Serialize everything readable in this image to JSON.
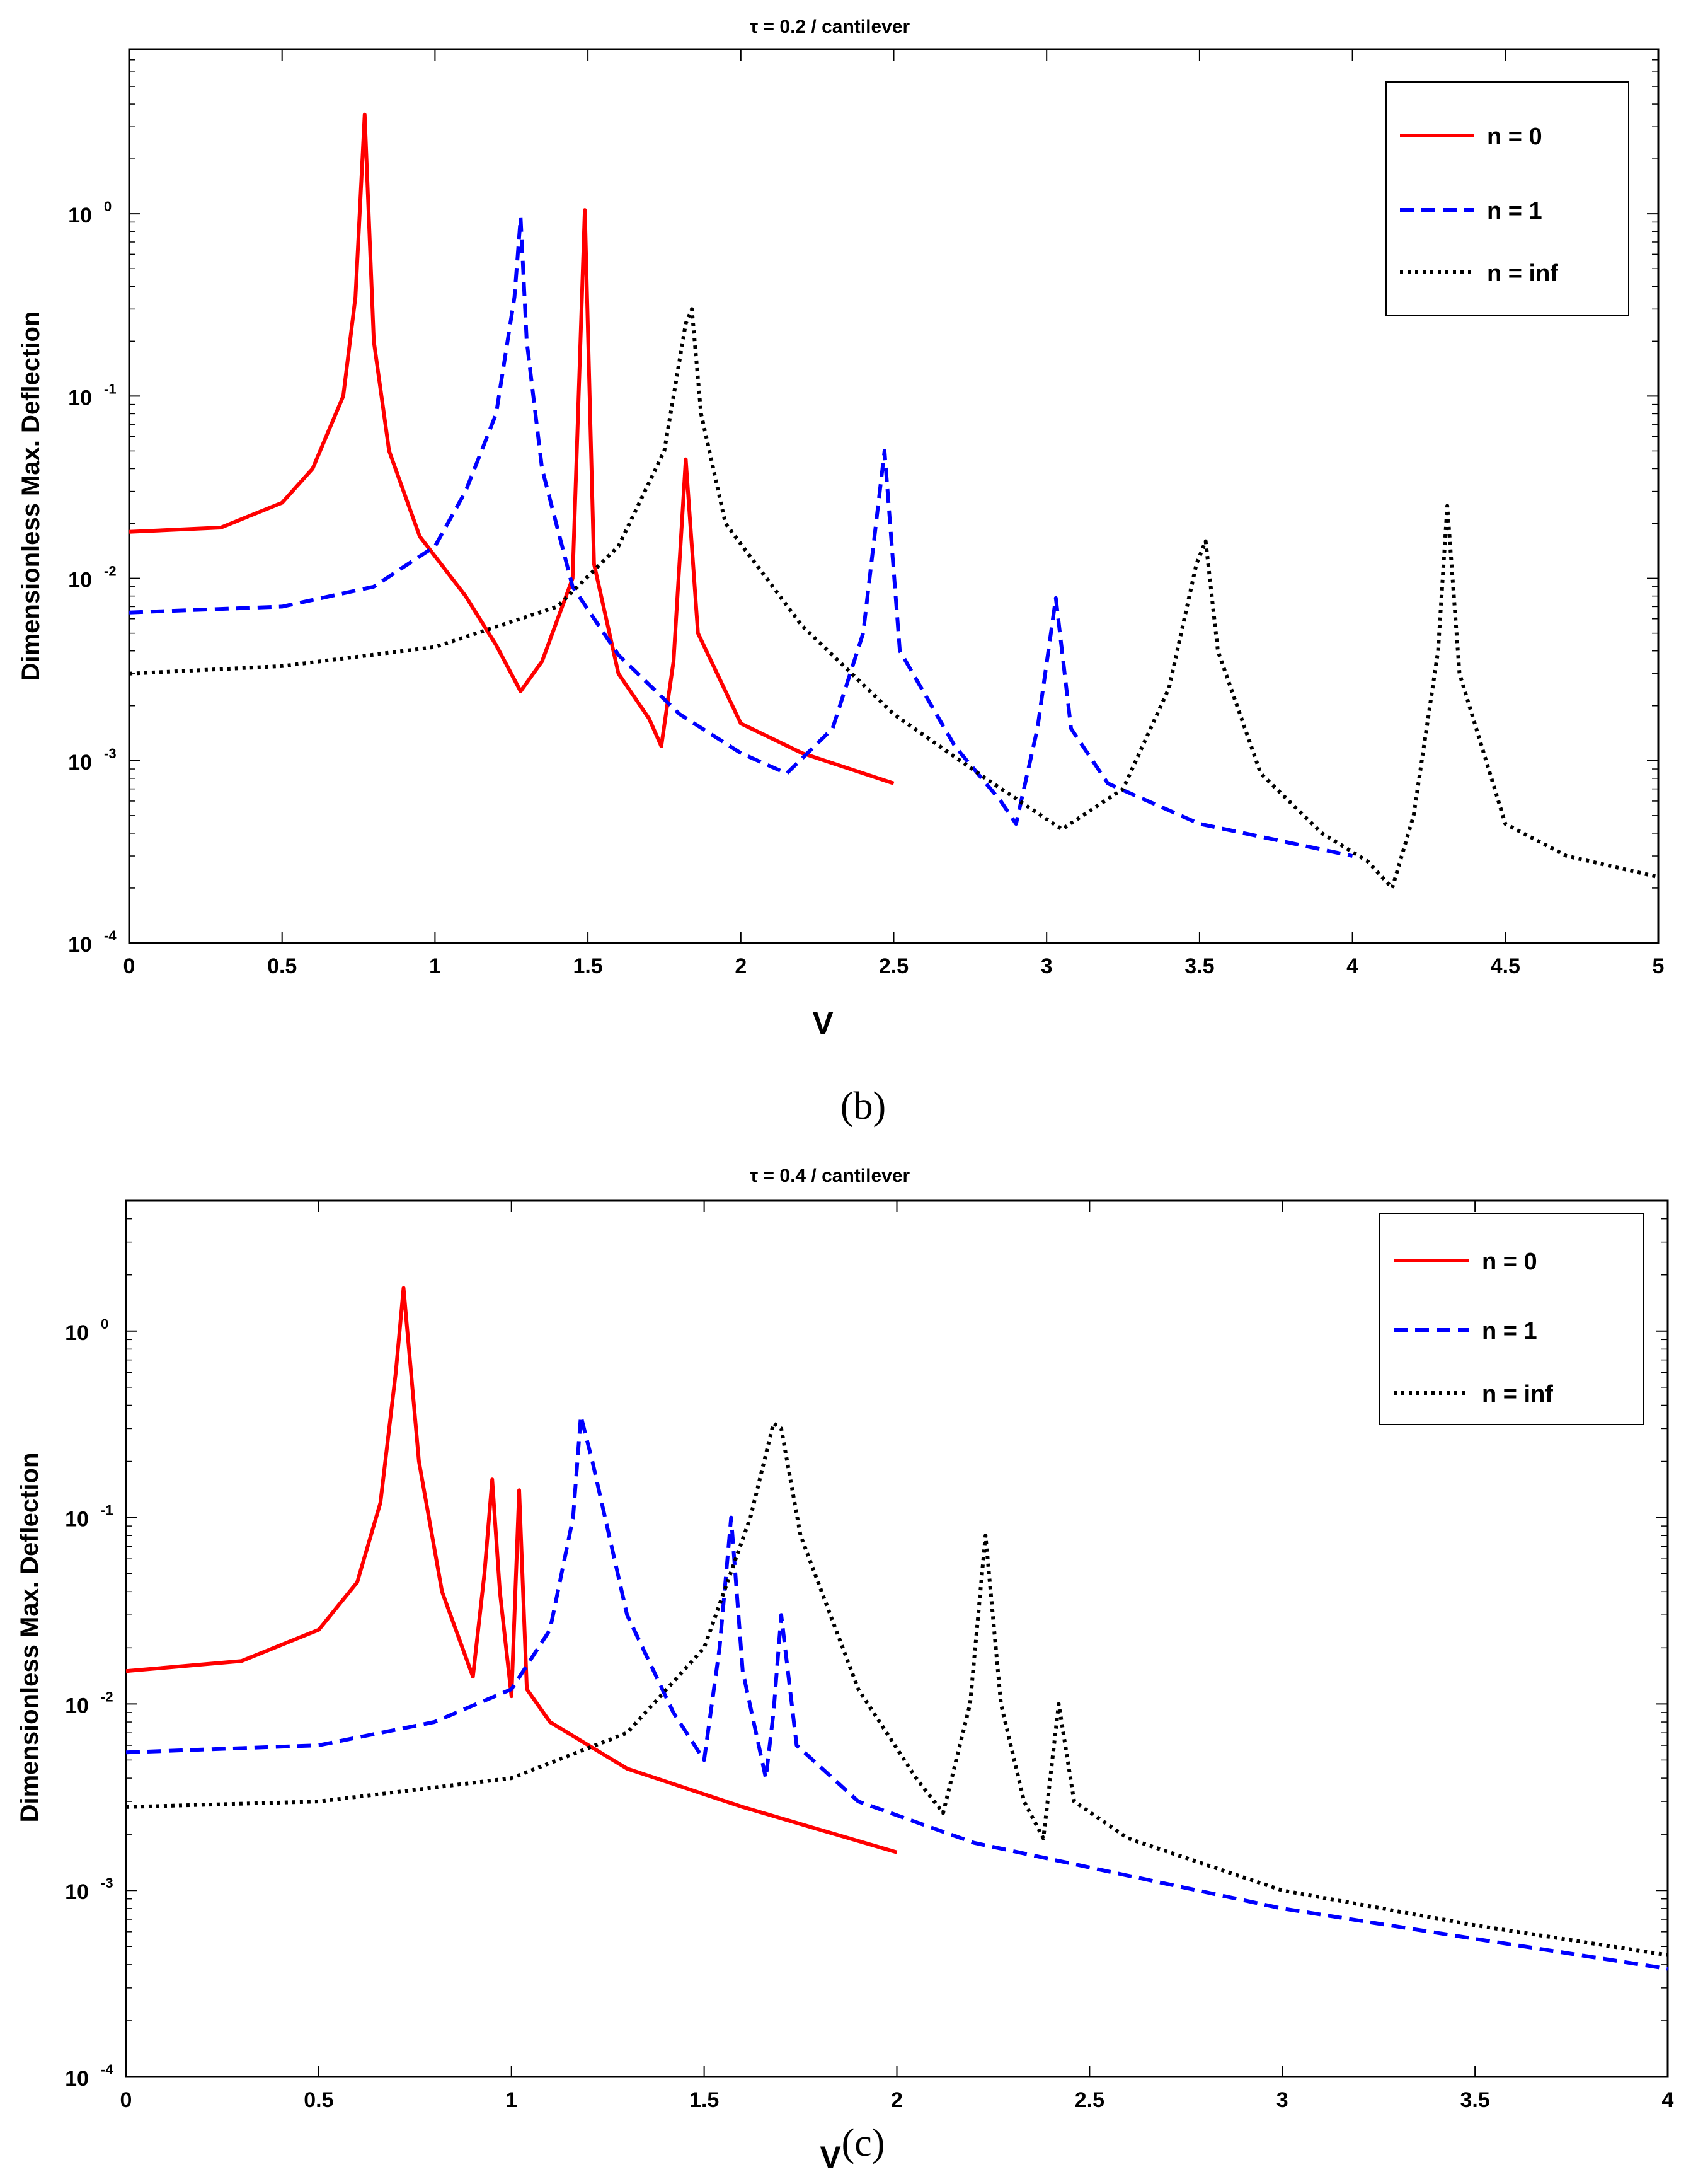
{
  "figures": [
    {
      "caption": "(b)",
      "chart_data": {
        "type": "line",
        "title": "τ = 0.2 / cantilever",
        "xlabel": "V",
        "ylabel": "Dimensionless Max. Deflection",
        "xlim": [
          0,
          5
        ],
        "ylim": [
          0.0001,
          8
        ],
        "yscale": "log",
        "xticks": [
          "0",
          "0.5",
          "1",
          "1.5",
          "2",
          "2.5",
          "3",
          "3.5",
          "4",
          "4.5",
          "5"
        ],
        "yticks": [
          {
            "base": "10",
            "exp": "-4"
          },
          {
            "base": "10",
            "exp": "-3"
          },
          {
            "base": "10",
            "exp": "-2"
          },
          {
            "base": "10",
            "exp": "-1"
          },
          {
            "base": "10",
            "exp": "0"
          }
        ],
        "legend_position": "top-right",
        "series": [
          {
            "name": "n = 0",
            "color": "#ff0000",
            "style": "solid",
            "x": [
              0,
              0.3,
              0.5,
              0.6,
              0.7,
              0.74,
              0.77,
              0.8,
              0.85,
              0.95,
              1.1,
              1.2,
              1.28,
              1.35,
              1.45,
              1.49,
              1.52,
              1.6,
              1.7,
              1.74,
              1.78,
              1.82,
              1.86,
              2.0,
              2.2,
              2.5
            ],
            "y": [
              0.018,
              0.019,
              0.026,
              0.04,
              0.1,
              0.35,
              3.5,
              0.2,
              0.05,
              0.017,
              0.008,
              0.0043,
              0.0024,
              0.0035,
              0.01,
              1.05,
              0.012,
              0.003,
              0.0017,
              0.0012,
              0.0035,
              0.045,
              0.005,
              0.0016,
              0.0011,
              0.00075
            ]
          },
          {
            "name": "n = 1",
            "color": "#0000ff",
            "style": "dashed",
            "x": [
              0,
              0.5,
              0.8,
              1.0,
              1.1,
              1.2,
              1.26,
              1.28,
              1.3,
              1.35,
              1.45,
              1.6,
              1.8,
              2.0,
              2.15,
              2.3,
              2.4,
              2.47,
              2.52,
              2.7,
              2.85,
              2.9,
              2.97,
              3.03,
              3.08,
              3.2,
              3.5,
              4.0
            ],
            "y": [
              0.0065,
              0.007,
              0.009,
              0.015,
              0.03,
              0.08,
              0.35,
              0.95,
              0.2,
              0.04,
              0.009,
              0.0038,
              0.0018,
              0.0011,
              0.00085,
              0.0015,
              0.005,
              0.05,
              0.004,
              0.0012,
              0.0006,
              0.00045,
              0.0015,
              0.0078,
              0.0015,
              0.00075,
              0.00045,
              0.0003
            ]
          },
          {
            "name": "n = inf",
            "color": "#000000",
            "style": "dotted",
            "x": [
              0,
              0.5,
              1.0,
              1.4,
              1.6,
              1.75,
              1.82,
              1.84,
              1.87,
              1.95,
              2.2,
              2.5,
              2.8,
              3.05,
              3.25,
              3.4,
              3.49,
              3.52,
              3.56,
              3.7,
              3.9,
              4.05,
              4.13,
              4.2,
              4.28,
              4.31,
              4.35,
              4.5,
              4.7,
              5.0
            ],
            "y": [
              0.003,
              0.0033,
              0.0042,
              0.007,
              0.015,
              0.05,
              0.25,
              0.3,
              0.08,
              0.02,
              0.0055,
              0.0018,
              0.0008,
              0.00042,
              0.0007,
              0.0025,
              0.012,
              0.016,
              0.004,
              0.00085,
              0.0004,
              0.00028,
              0.0002,
              0.0005,
              0.004,
              0.025,
              0.003,
              0.00045,
              0.0003,
              0.00023
            ]
          }
        ]
      }
    },
    {
      "caption": "(c)",
      "chart_data": {
        "type": "line",
        "title": "τ = 0.4 / cantilever",
        "xlabel": "V",
        "ylabel": "Dimensionless Max. Deflection",
        "xlim": [
          0,
          4
        ],
        "ylim": [
          0.0001,
          5
        ],
        "yscale": "log",
        "xticks": [
          "0",
          "0.5",
          "1",
          "1.5",
          "2",
          "2.5",
          "3",
          "3.5",
          "4"
        ],
        "yticks": [
          {
            "base": "10",
            "exp": "-4"
          },
          {
            "base": "10",
            "exp": "-3"
          },
          {
            "base": "10",
            "exp": "-2"
          },
          {
            "base": "10",
            "exp": "-1"
          },
          {
            "base": "10",
            "exp": "0"
          }
        ],
        "legend_position": "top-right",
        "series": [
          {
            "name": "n = 0",
            "color": "#ff0000",
            "style": "solid",
            "x": [
              0,
              0.3,
              0.5,
              0.6,
              0.66,
              0.7,
              0.72,
              0.76,
              0.82,
              0.9,
              0.93,
              0.95,
              0.97,
              1.0,
              1.02,
              1.04,
              1.1,
              1.3,
              1.6,
              2.0
            ],
            "y": [
              0.015,
              0.017,
              0.025,
              0.045,
              0.12,
              0.6,
              1.7,
              0.2,
              0.04,
              0.014,
              0.05,
              0.16,
              0.04,
              0.011,
              0.14,
              0.012,
              0.008,
              0.0045,
              0.0028,
              0.0016
            ]
          },
          {
            "name": "n = 1",
            "color": "#0000ff",
            "style": "dashed",
            "x": [
              0,
              0.5,
              0.8,
              1.0,
              1.1,
              1.16,
              1.18,
              1.21,
              1.3,
              1.42,
              1.5,
              1.54,
              1.57,
              1.6,
              1.66,
              1.68,
              1.7,
              1.74,
              1.9,
              2.2,
              2.6,
              3.0,
              3.5,
              4.0
            ],
            "y": [
              0.0055,
              0.006,
              0.008,
              0.012,
              0.025,
              0.1,
              0.35,
              0.2,
              0.03,
              0.009,
              0.005,
              0.02,
              0.1,
              0.015,
              0.004,
              0.009,
              0.03,
              0.006,
              0.003,
              0.0018,
              0.0012,
              0.0008,
              0.00055,
              0.00038
            ]
          },
          {
            "name": "n = inf",
            "color": "#000000",
            "style": "dotted",
            "x": [
              0,
              0.5,
              1.0,
              1.3,
              1.5,
              1.62,
              1.68,
              1.7,
              1.75,
              1.9,
              2.05,
              2.12,
              2.19,
              2.23,
              2.27,
              2.33,
              2.38,
              2.42,
              2.46,
              2.6,
              3.0,
              3.5,
              4.0
            ],
            "y": [
              0.0028,
              0.003,
              0.004,
              0.007,
              0.02,
              0.1,
              0.32,
              0.3,
              0.08,
              0.012,
              0.004,
              0.0026,
              0.01,
              0.08,
              0.01,
              0.003,
              0.0019,
              0.01,
              0.003,
              0.0019,
              0.001,
              0.00065,
              0.00045
            ]
          }
        ]
      }
    }
  ]
}
